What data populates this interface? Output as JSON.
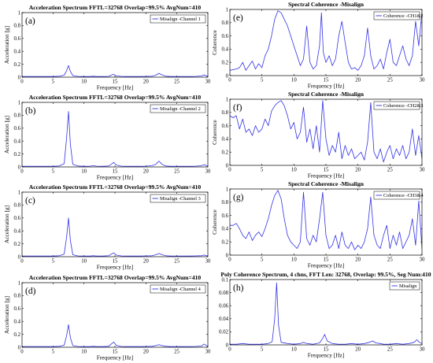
{
  "colors": {
    "line": "#3333e6",
    "axis": "#000000",
    "background": "#ffffff"
  },
  "chart_data": [
    {
      "type": "line",
      "panel_label": "(a)",
      "title": "Acceleration Spectrum FFTL=32768 Overlap=99.5% AvgNum=410",
      "xlabel": "Frequency [Hz]",
      "ylabel": "Acceleration [g]",
      "xlim": [
        0,
        30
      ],
      "ylim": [
        0,
        1
      ],
      "xticks": [
        "0",
        "5",
        "10",
        "15",
        "20",
        "25",
        "30"
      ],
      "yticks": [
        "0",
        "0.2",
        "0.4",
        "0.6",
        "0.8",
        "1"
      ],
      "legend": "top-right",
      "series": [
        {
          "name": "Misalign -Channel 1",
          "x": [
            0,
            1,
            2,
            3,
            4,
            5,
            6,
            6.8,
            7.2,
            7.5,
            7.8,
            8.2,
            9,
            10,
            11,
            11.5,
            12,
            13,
            14,
            14.4,
            14.8,
            15.2,
            16,
            17,
            18,
            19,
            20,
            21,
            21.6,
            22.1,
            22.6,
            23.2,
            24,
            25,
            26,
            27,
            28,
            29,
            29.4,
            29.8,
            30
          ],
          "y": [
            0.01,
            0.01,
            0.01,
            0.01,
            0.01,
            0.01,
            0.015,
            0.03,
            0.1,
            0.18,
            0.09,
            0.025,
            0.012,
            0.01,
            0.01,
            0.015,
            0.01,
            0.01,
            0.012,
            0.03,
            0.045,
            0.02,
            0.012,
            0.01,
            0.01,
            0.01,
            0.012,
            0.015,
            0.03,
            0.06,
            0.035,
            0.015,
            0.01,
            0.01,
            0.01,
            0.01,
            0.012,
            0.02,
            0.035,
            0.02,
            0.01
          ]
        }
      ]
    },
    {
      "type": "line",
      "panel_label": "(b)",
      "title": "Acceleration Spectrum FFTL=32768 Overlap=99.5% AvgNum=410",
      "xlabel": "Frequency [Hz]",
      "ylabel": "Acceleration [g]",
      "xlim": [
        0,
        30
      ],
      "ylim": [
        0,
        1
      ],
      "xticks": [
        "0",
        "5",
        "10",
        "15",
        "20",
        "25",
        "30"
      ],
      "yticks": [
        "0",
        "0.2",
        "0.4",
        "0.6",
        "0.8",
        "1"
      ],
      "legend": "top-right",
      "series": [
        {
          "name": "Misalign -Channel 2",
          "x": [
            0,
            1,
            2,
            3,
            4,
            5,
            6,
            6.8,
            7.2,
            7.5,
            7.8,
            8.2,
            9,
            10,
            11,
            11.5,
            12,
            13,
            14,
            14.4,
            14.8,
            15.2,
            16,
            17,
            18,
            19,
            20,
            21,
            21.6,
            22.1,
            22.6,
            23.2,
            24,
            25,
            26,
            27,
            28,
            29,
            29.4,
            29.8,
            30
          ],
          "y": [
            0.01,
            0.01,
            0.01,
            0.01,
            0.01,
            0.01,
            0.015,
            0.05,
            0.45,
            0.86,
            0.35,
            0.04,
            0.015,
            0.01,
            0.012,
            0.02,
            0.012,
            0.01,
            0.015,
            0.04,
            0.07,
            0.03,
            0.012,
            0.01,
            0.01,
            0.01,
            0.012,
            0.02,
            0.04,
            0.09,
            0.04,
            0.015,
            0.01,
            0.01,
            0.01,
            0.01,
            0.012,
            0.02,
            0.035,
            0.02,
            0.01
          ]
        }
      ]
    },
    {
      "type": "line",
      "panel_label": "(c)",
      "title": "Acceleration Spectrum FFTL=32768 Overlap=99.5% AvgNum=410",
      "xlabel": "Frequency [Hz]",
      "ylabel": "Acceleration [g]",
      "xlim": [
        0,
        30
      ],
      "ylim": [
        0,
        1
      ],
      "xticks": [
        "0",
        "5",
        "10",
        "15",
        "20",
        "25",
        "30"
      ],
      "yticks": [
        "0",
        "0.2",
        "0.4",
        "0.6",
        "0.8",
        "1"
      ],
      "legend": "top-right",
      "series": [
        {
          "name": "Misalign -Channel 3",
          "x": [
            0,
            1,
            2,
            3,
            4,
            5,
            6,
            6.8,
            7.2,
            7.5,
            7.8,
            8.2,
            9,
            10,
            11,
            11.5,
            12,
            13,
            14,
            14.4,
            14.8,
            15.2,
            16,
            17,
            18,
            19,
            20,
            21,
            21.6,
            22.1,
            22.6,
            23.2,
            24,
            25,
            26,
            27,
            28,
            29,
            29.4,
            29.8,
            30
          ],
          "y": [
            0.01,
            0.01,
            0.01,
            0.01,
            0.01,
            0.01,
            0.015,
            0.04,
            0.3,
            0.6,
            0.25,
            0.03,
            0.012,
            0.01,
            0.01,
            0.015,
            0.01,
            0.01,
            0.015,
            0.04,
            0.06,
            0.025,
            0.012,
            0.01,
            0.01,
            0.01,
            0.012,
            0.015,
            0.03,
            0.05,
            0.03,
            0.015,
            0.01,
            0.01,
            0.01,
            0.01,
            0.012,
            0.015,
            0.025,
            0.015,
            0.01
          ]
        }
      ]
    },
    {
      "type": "line",
      "panel_label": "(d)",
      "title": "Acceleration Spectrum FFTL=32768 Overlap=99.5% AvgNum=410",
      "xlabel": "Frequency [Hz]",
      "ylabel": "Acceleration [g]",
      "xlim": [
        0,
        30
      ],
      "ylim": [
        0,
        1
      ],
      "xticks": [
        "0",
        "5",
        "10",
        "15",
        "20",
        "25",
        "30"
      ],
      "yticks": [
        "0",
        "0.2",
        "0.4",
        "0.6",
        "0.8",
        "1"
      ],
      "legend": "top-right",
      "series": [
        {
          "name": "Misalign -Channel 4",
          "x": [
            0,
            1,
            2,
            3,
            4,
            5,
            6,
            6.8,
            7.2,
            7.5,
            7.8,
            8.2,
            9,
            10,
            11,
            11.5,
            12,
            13,
            14,
            14.4,
            14.8,
            15.2,
            16,
            17,
            18,
            19,
            20,
            21,
            21.6,
            22.1,
            22.6,
            23.2,
            24,
            25,
            26,
            27,
            28,
            29,
            29.4,
            29.8,
            30
          ],
          "y": [
            0.01,
            0.01,
            0.01,
            0.01,
            0.01,
            0.01,
            0.015,
            0.03,
            0.18,
            0.35,
            0.15,
            0.025,
            0.012,
            0.01,
            0.01,
            0.015,
            0.01,
            0.01,
            0.015,
            0.05,
            0.08,
            0.03,
            0.012,
            0.01,
            0.01,
            0.01,
            0.012,
            0.015,
            0.025,
            0.04,
            0.025,
            0.015,
            0.01,
            0.01,
            0.01,
            0.01,
            0.012,
            0.02,
            0.05,
            0.025,
            0.01
          ]
        }
      ]
    },
    {
      "type": "line",
      "panel_label": "(e)",
      "title": "Spectral Coherence -Misalign",
      "xlabel": "Frequency [Hz]",
      "ylabel": "Coherence",
      "xlim": [
        0,
        30
      ],
      "ylim": [
        0,
        1
      ],
      "xticks": [
        "0",
        "5",
        "10",
        "15",
        "20",
        "25",
        "30"
      ],
      "yticks": [
        "0",
        "0.2",
        "0.4",
        "0.6",
        "0.8",
        "1"
      ],
      "legend": "top-right",
      "series": [
        {
          "name": "Coherence -CH1&2",
          "x": [
            0,
            1,
            1.5,
            2,
            2.5,
            3,
            3.5,
            4,
            4.5,
            5,
            5.5,
            6,
            6.5,
            7,
            7.5,
            8,
            8.5,
            9,
            9.5,
            10,
            10.5,
            11,
            11.5,
            12,
            12.5,
            13,
            13.5,
            14,
            14.3,
            14.6,
            15,
            15.5,
            16,
            16.5,
            17,
            17.5,
            18,
            18.5,
            19,
            19.5,
            20,
            20.5,
            21,
            21.5,
            22,
            22.5,
            23,
            23.5,
            24,
            24.5,
            25,
            25.5,
            26,
            26.5,
            27,
            27.5,
            28,
            28.5,
            29,
            29.5,
            30
          ],
          "y": [
            0.08,
            0.1,
            0.12,
            0.2,
            0.08,
            0.15,
            0.22,
            0.1,
            0.18,
            0.12,
            0.3,
            0.4,
            0.6,
            0.85,
            0.98,
            0.95,
            0.85,
            0.75,
            0.6,
            0.45,
            0.3,
            0.15,
            0.25,
            0.75,
            0.2,
            0.1,
            0.15,
            0.45,
            0.95,
            0.35,
            0.2,
            0.3,
            0.15,
            0.25,
            0.6,
            0.82,
            0.5,
            0.2,
            0.1,
            0.12,
            0.08,
            0.15,
            0.3,
            0.72,
            0.3,
            0.1,
            0.15,
            0.25,
            0.1,
            0.35,
            0.55,
            0.2,
            0.15,
            0.3,
            0.45,
            0.25,
            0.15,
            0.3,
            0.82,
            0.45,
            0.97
          ]
        }
      ]
    },
    {
      "type": "line",
      "panel_label": "(f)",
      "title": "Spectral Coherence -Misalign",
      "xlabel": "Frequency [Hz]",
      "ylabel": "Coherence",
      "xlim": [
        0,
        30
      ],
      "ylim": [
        0,
        1
      ],
      "xticks": [
        "0",
        "5",
        "10",
        "15",
        "20",
        "25",
        "30"
      ],
      "yticks": [
        "0",
        "0.2",
        "0.4",
        "0.6",
        "0.8",
        "1"
      ],
      "legend": "top-right",
      "series": [
        {
          "name": "Coherence -CH2&3",
          "x": [
            0,
            0.5,
            1,
            1.5,
            2,
            2.5,
            3,
            3.5,
            4,
            4.5,
            5,
            5.5,
            6,
            6.5,
            7,
            7.5,
            8,
            8.5,
            9,
            9.5,
            10,
            10.5,
            11,
            11.5,
            12,
            12.5,
            13,
            13.5,
            14,
            14.5,
            15,
            15.5,
            16,
            16.5,
            17,
            17.5,
            18,
            18.5,
            19,
            19.5,
            20,
            20.5,
            21,
            21.5,
            22,
            22.5,
            23,
            23.5,
            24,
            24.5,
            25,
            25.5,
            26,
            26.5,
            27,
            27.5,
            28,
            28.5,
            29,
            29.5,
            30
          ],
          "y": [
            0.75,
            0.72,
            0.75,
            0.55,
            0.7,
            0.5,
            0.55,
            0.45,
            0.6,
            0.5,
            0.55,
            0.7,
            0.6,
            0.82,
            0.9,
            0.95,
            0.98,
            0.9,
            0.75,
            0.55,
            0.65,
            0.4,
            0.5,
            0.88,
            0.35,
            0.55,
            0.25,
            0.6,
            0.2,
            0.98,
            0.4,
            0.15,
            0.3,
            0.2,
            0.5,
            0.1,
            0.3,
            0.15,
            0.25,
            0.1,
            0.15,
            0.2,
            0.08,
            0.35,
            0.95,
            0.2,
            0.1,
            0.25,
            0.05,
            0.2,
            0.3,
            0.1,
            0.25,
            0.15,
            0.3,
            0.1,
            0.2,
            0.55,
            0.15,
            0.45,
            0.1
          ]
        }
      ]
    },
    {
      "type": "line",
      "panel_label": "(g)",
      "title": "Spectral Coherence -Misalign",
      "xlabel": "Frequency [Hz]",
      "ylabel": "Coherence",
      "xlim": [
        0,
        30
      ],
      "ylim": [
        0,
        1
      ],
      "xticks": [
        "0",
        "5",
        "10",
        "15",
        "20",
        "25",
        "30"
      ],
      "yticks": [
        "0",
        "0.2",
        "0.4",
        "0.6",
        "0.8",
        "1"
      ],
      "legend": "top-right",
      "series": [
        {
          "name": "Coherence -CH3&4",
          "x": [
            0,
            0.5,
            1,
            1.5,
            2,
            2.5,
            3,
            3.5,
            4,
            4.5,
            5,
            5.5,
            6,
            6.5,
            7,
            7.5,
            8,
            8.5,
            9,
            9.5,
            10,
            10.5,
            11,
            11.5,
            12,
            12.5,
            13,
            13.5,
            14,
            14.5,
            15,
            15.5,
            16,
            16.5,
            17,
            17.5,
            18,
            18.5,
            19,
            19.5,
            20,
            20.5,
            21,
            21.5,
            22,
            22.5,
            23,
            23.5,
            24,
            24.5,
            25,
            25.5,
            26,
            26.5,
            27,
            27.5,
            28,
            28.5,
            29,
            29.5,
            30
          ],
          "y": [
            0.45,
            0.45,
            0.48,
            0.4,
            0.3,
            0.25,
            0.35,
            0.22,
            0.3,
            0.35,
            0.28,
            0.4,
            0.55,
            0.75,
            0.9,
            0.98,
            0.85,
            0.55,
            0.3,
            0.2,
            0.15,
            0.1,
            0.2,
            0.95,
            0.25,
            0.15,
            0.3,
            0.2,
            0.55,
            0.95,
            0.3,
            0.1,
            0.15,
            0.3,
            0.1,
            0.35,
            0.15,
            0.1,
            0.2,
            0.08,
            0.15,
            0.1,
            0.2,
            0.4,
            0.88,
            0.3,
            0.15,
            0.1,
            0.3,
            0.45,
            0.1,
            0.3,
            0.15,
            0.35,
            0.1,
            0.2,
            0.3,
            0.55,
            0.15,
            0.82,
            0.1
          ]
        }
      ]
    },
    {
      "type": "line",
      "panel_label": "(h)",
      "title": "Poly Coherence Spectrum, 4 chns, FFT Len: 32768, Overlap: 99.5%, Seg Num:410",
      "xlabel": "Frequency [Hz]",
      "ylabel": "",
      "xlim": [
        0,
        30
      ],
      "ylim": [
        0,
        0.1
      ],
      "xticks": [
        "0",
        "5",
        "10",
        "15",
        "20",
        "25",
        "30"
      ],
      "yticks": [
        "0",
        "0.02",
        "0.04",
        "0.06",
        "0.08",
        "0.1"
      ],
      "legend": "top-right",
      "series": [
        {
          "name": "Misalign",
          "x": [
            0,
            1,
            2,
            3,
            4,
            5,
            6,
            6.6,
            7,
            7.3,
            7.6,
            8,
            9,
            10,
            11,
            11.5,
            12,
            13,
            14,
            14.5,
            14.8,
            15.2,
            16,
            17,
            18,
            19,
            20,
            21,
            21.8,
            22.3,
            22.8,
            23.5,
            24,
            25,
            26,
            27,
            28,
            28.8,
            29.2,
            29.6,
            30
          ],
          "y": [
            0.001,
            0.001,
            0.002,
            0.001,
            0.001,
            0.001,
            0.002,
            0.005,
            0.04,
            0.095,
            0.03,
            0.004,
            0.002,
            0.001,
            0.002,
            0.004,
            0.002,
            0.001,
            0.003,
            0.01,
            0.016,
            0.006,
            0.002,
            0.001,
            0.001,
            0.002,
            0.001,
            0.002,
            0.004,
            0.006,
            0.003,
            0.002,
            0.001,
            0.001,
            0.002,
            0.001,
            0.002,
            0.004,
            0.008,
            0.004,
            0.002
          ]
        }
      ]
    }
  ]
}
